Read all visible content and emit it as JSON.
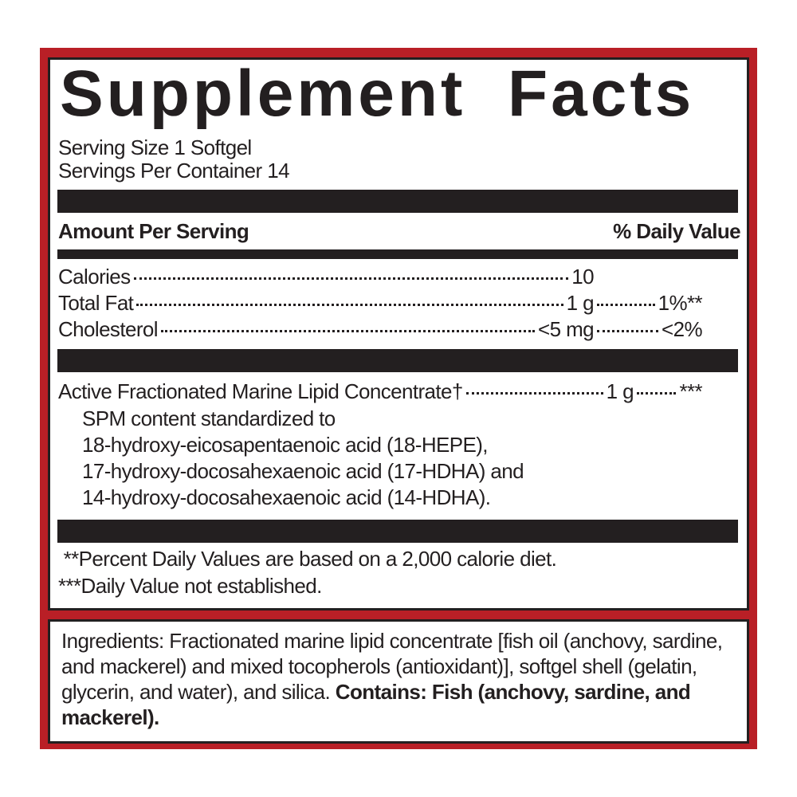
{
  "label": {
    "title": "Supplement Facts",
    "serving_size": "Serving Size 1 Softgel",
    "servings_per_container": "Servings Per Container 14",
    "amount_header": "Amount Per Serving",
    "dv_header": "% Daily Value",
    "nutrients": [
      {
        "name": "Calories",
        "amount": "10",
        "dv": ""
      },
      {
        "name": "Total Fat",
        "amount": "1 g",
        "dv": "1%**"
      },
      {
        "name": "Cholesterol",
        "amount": "<5 mg",
        "dv": "<2%"
      }
    ],
    "active": {
      "name": "Active Fractionated Marine Lipid Concentrate†",
      "amount": "1 g",
      "dv": "***",
      "details": [
        "SPM content standardized to",
        "18-hydroxy-eicosapentaenoic acid (18-HEPE),",
        "17-hydroxy-docosahexaenoic acid (17-HDHA) and",
        "14-hydroxy-docosahexaenoic acid (14-HDHA)."
      ]
    },
    "footnotes": [
      " **Percent Daily Values are based on a 2,000 calorie diet.",
      "***Daily Value not established."
    ]
  },
  "ingredients": {
    "text": "Ingredients: Fractionated marine lipid concentrate [fish oil (anchovy, sardine, and mackerel) and mixed tocopherols (antioxidant)], softgel shell (gelatin, glycerin, and water), and silica.",
    "contains": "Contains: Fish (anchovy, sardine, and mackerel)."
  },
  "colors": {
    "frame": "#b91f26",
    "ink": "#231f20"
  }
}
